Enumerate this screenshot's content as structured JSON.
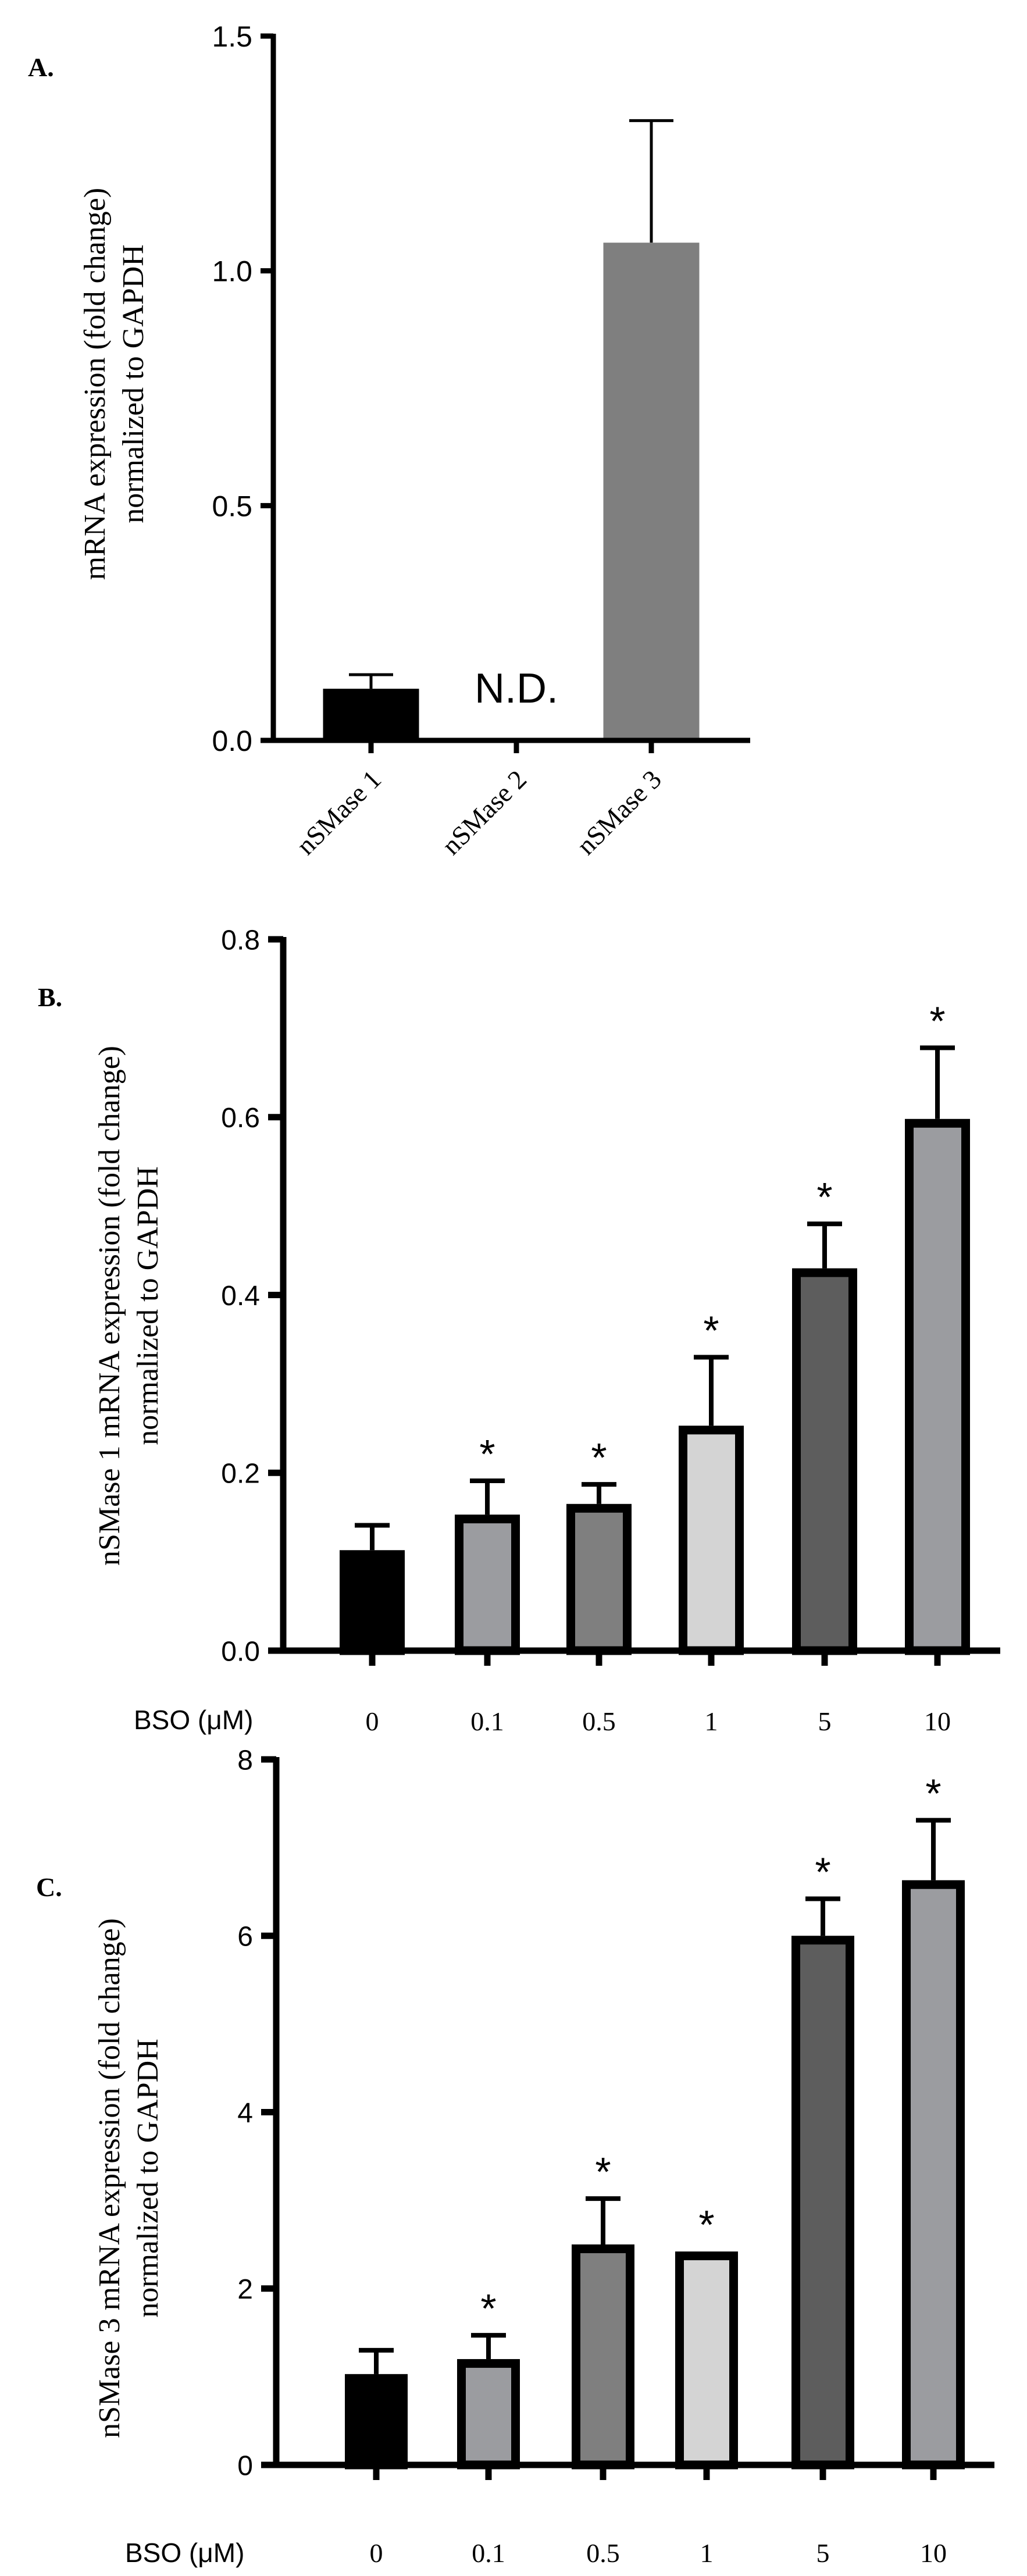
{
  "chart_data": [
    {
      "panel_label": "A.",
      "type": "bar",
      "categories": [
        "nSMase 1",
        "nSMase 2",
        "nSMase 3"
      ],
      "values": [
        0.11,
        null,
        1.06
      ],
      "errors": [
        0.03,
        null,
        0.26
      ],
      "bar_colors": [
        "#000000",
        "#ffffff",
        "#7f7f7f"
      ],
      "annotations": {
        "nSMase 2": "N.D."
      },
      "ylabel_lines": [
        "mRNA expression (fold change)",
        "normalized to GAPDH"
      ],
      "xlabel": "",
      "ylim": [
        0,
        1.5
      ],
      "yticks": [
        0.0,
        0.5,
        1.0,
        1.5
      ],
      "ytick_labels": [
        "0.0",
        "0.5",
        "1.0",
        "1.5"
      ]
    },
    {
      "panel_label": "B.",
      "type": "bar",
      "categories": [
        "0",
        "0.1",
        "0.5",
        "1",
        "5",
        "10"
      ],
      "values": [
        0.113,
        0.153,
        0.165,
        0.253,
        0.43,
        0.598
      ],
      "errors": [
        0.028,
        0.038,
        0.022,
        0.077,
        0.05,
        0.08
      ],
      "significance": [
        "",
        "*",
        "*",
        "*",
        "*",
        "*"
      ],
      "bar_colors": [
        "#000000",
        "#9b9ca0",
        "#7f7f7f",
        "#d4d4d4",
        "#5d5d5d",
        "#9b9ca0"
      ],
      "ylabel_lines": [
        "nSMase 1 mRNA expression (fold change)",
        "normalized to GAPDH"
      ],
      "xlabel": "BSO (μM)",
      "ylim": [
        0,
        0.8
      ],
      "yticks": [
        0.0,
        0.2,
        0.4,
        0.6,
        0.8
      ],
      "ytick_labels": [
        "0.0",
        "0.2",
        "0.4",
        "0.6",
        "0.8"
      ]
    },
    {
      "panel_label": "C.",
      "type": "bar",
      "categories": [
        "0",
        "0.1",
        "0.5",
        "1",
        "5",
        "10"
      ],
      "values": [
        1.03,
        1.2,
        2.5,
        2.42,
        6.0,
        6.63
      ],
      "errors": [
        0.27,
        0.27,
        0.52,
        0.0,
        0.42,
        0.68
      ],
      "significance": [
        "",
        "*",
        "*",
        "*",
        "*",
        "*"
      ],
      "bar_colors": [
        "#000000",
        "#9b9ca0",
        "#7f7f7f",
        "#d4d4d4",
        "#5d5d5d",
        "#9b9ca0"
      ],
      "ylabel_lines": [
        "nSMase 3 mRNA expression (fold change)",
        "normalized to GAPDH"
      ],
      "xlabel": "BSO (μM)",
      "ylim": [
        0,
        8
      ],
      "yticks": [
        0,
        2,
        4,
        6,
        8
      ],
      "ytick_labels": [
        "0",
        "2",
        "4",
        "6",
        "8"
      ]
    }
  ]
}
